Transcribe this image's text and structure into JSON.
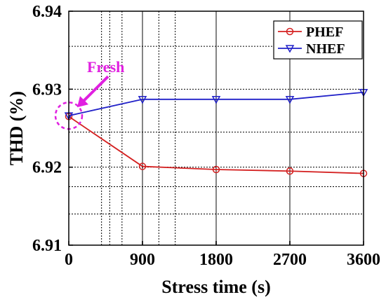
{
  "chart_data": {
    "type": "line",
    "x": [
      0,
      900,
      1800,
      2700,
      3600
    ],
    "xlim": [
      0,
      3600
    ],
    "ylim": [
      6.91,
      6.94
    ],
    "xticks": [
      "0",
      "900",
      "1800",
      "2700",
      "3600"
    ],
    "yticks": [
      "6.91",
      "6.92",
      "6.93",
      "6.94"
    ],
    "xlabel": "Stress time (s)",
    "ylabel": "THD (%)",
    "grid": true,
    "legend_position": "top-right",
    "series": [
      {
        "name": "PHEF",
        "color": "#d42020",
        "marker": "circle",
        "values": [
          6.9265,
          6.9201,
          6.9197,
          6.9195,
          6.9192
        ]
      },
      {
        "name": "NHEF",
        "color": "#2020c8",
        "marker": "triangle-down",
        "values": [
          6.9266,
          6.9287,
          6.9287,
          6.9287,
          6.9296
        ]
      }
    ],
    "annotation": {
      "text": "Fresh",
      "color": "#e020e0",
      "x": 0,
      "y": 6.9266
    }
  }
}
